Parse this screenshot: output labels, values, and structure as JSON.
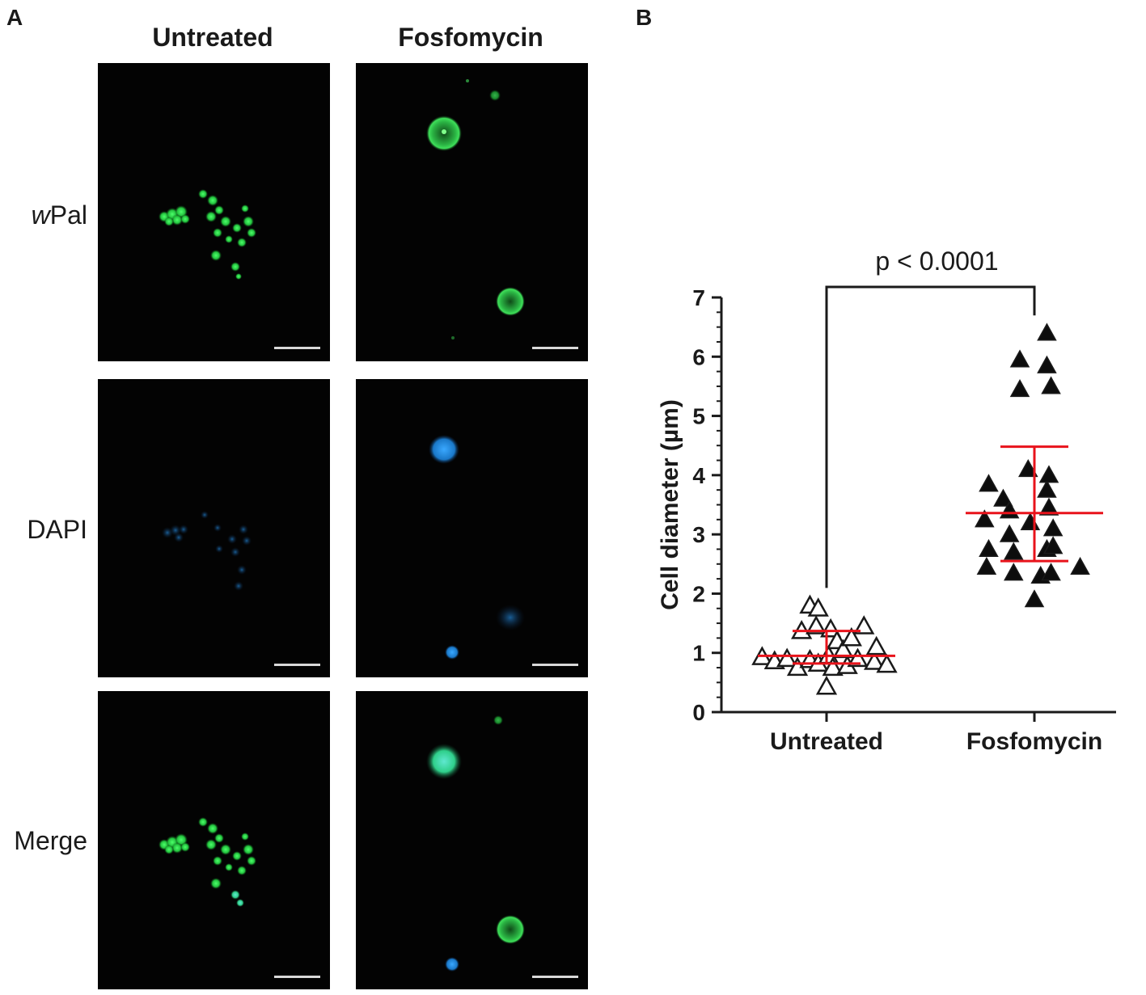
{
  "panels": {
    "a_label": "A",
    "b_label": "B"
  },
  "microscopy": {
    "columns": [
      "Untreated",
      "Fosfomycin"
    ],
    "rows": [
      {
        "prefix": "w",
        "rest": "Pal"
      },
      {
        "prefix": "",
        "rest": "DAPI"
      },
      {
        "prefix": "",
        "rest": "Merge"
      }
    ],
    "colors": {
      "wpal": "#2fd14a",
      "dapi": "#1e8fd8",
      "merge": "#2ed6a0",
      "scale_bar": "#d9d9d9"
    }
  },
  "chart_data": {
    "type": "scatter",
    "ylabel": "Cell diameter (µm)",
    "ylim": [
      0,
      7
    ],
    "yticks": [
      0,
      1,
      2,
      3,
      4,
      5,
      6,
      7
    ],
    "categories": [
      "Untreated",
      "Fosfomycin"
    ],
    "annotation": "p < 0.0001",
    "summary_color": "#e8131b",
    "series": [
      {
        "category": "Untreated",
        "marker": "open-triangle",
        "summary": {
          "mean": 0.95,
          "lower": 0.82,
          "upper": 1.37
        },
        "points": [
          {
            "offset": -0.31,
            "y": 0.93
          },
          {
            "offset": -0.25,
            "y": 0.86
          },
          {
            "offset": -0.19,
            "y": 0.9
          },
          {
            "offset": -0.14,
            "y": 0.75
          },
          {
            "offset": -0.12,
            "y": 1.37
          },
          {
            "offset": -0.08,
            "y": 1.8
          },
          {
            "offset": -0.08,
            "y": 0.88
          },
          {
            "offset": -0.04,
            "y": 1.75
          },
          {
            "offset": -0.05,
            "y": 1.45
          },
          {
            "offset": -0.04,
            "y": 0.82
          },
          {
            "offset": 0.0,
            "y": 0.43
          },
          {
            "offset": 0.01,
            "y": 0.95
          },
          {
            "offset": 0.02,
            "y": 1.4
          },
          {
            "offset": 0.03,
            "y": 0.75
          },
          {
            "offset": 0.05,
            "y": 1.2
          },
          {
            "offset": 0.08,
            "y": 1.05
          },
          {
            "offset": 0.1,
            "y": 0.78
          },
          {
            "offset": 0.12,
            "y": 1.25
          },
          {
            "offset": 0.15,
            "y": 0.9
          },
          {
            "offset": 0.18,
            "y": 1.45
          },
          {
            "offset": 0.23,
            "y": 0.85
          },
          {
            "offset": 0.24,
            "y": 1.1
          },
          {
            "offset": 0.29,
            "y": 0.8
          }
        ]
      },
      {
        "category": "Fosfomycin",
        "marker": "filled-triangle",
        "summary": {
          "mean": 3.36,
          "lower": 2.55,
          "upper": 4.48
        },
        "points": [
          {
            "offset": -0.22,
            "y": 3.85
          },
          {
            "offset": -0.24,
            "y": 3.25
          },
          {
            "offset": -0.22,
            "y": 2.75
          },
          {
            "offset": -0.23,
            "y": 2.45
          },
          {
            "offset": -0.15,
            "y": 3.6
          },
          {
            "offset": -0.12,
            "y": 3.4
          },
          {
            "offset": -0.12,
            "y": 3.0
          },
          {
            "offset": -0.1,
            "y": 2.7
          },
          {
            "offset": -0.1,
            "y": 2.35
          },
          {
            "offset": -0.07,
            "y": 5.95
          },
          {
            "offset": -0.07,
            "y": 5.45
          },
          {
            "offset": -0.03,
            "y": 4.1
          },
          {
            "offset": -0.02,
            "y": 3.2
          },
          {
            "offset": 0.0,
            "y": 1.9
          },
          {
            "offset": 0.03,
            "y": 2.3
          },
          {
            "offset": 0.06,
            "y": 3.75
          },
          {
            "offset": 0.06,
            "y": 2.75
          },
          {
            "offset": 0.06,
            "y": 6.4
          },
          {
            "offset": 0.08,
            "y": 2.35
          },
          {
            "offset": 0.06,
            "y": 5.85
          },
          {
            "offset": 0.08,
            "y": 5.5
          },
          {
            "offset": 0.07,
            "y": 4.0
          },
          {
            "offset": 0.07,
            "y": 3.45
          },
          {
            "offset": 0.09,
            "y": 2.8
          },
          {
            "offset": 0.09,
            "y": 3.1
          },
          {
            "offset": 0.22,
            "y": 2.45
          }
        ]
      }
    ]
  }
}
